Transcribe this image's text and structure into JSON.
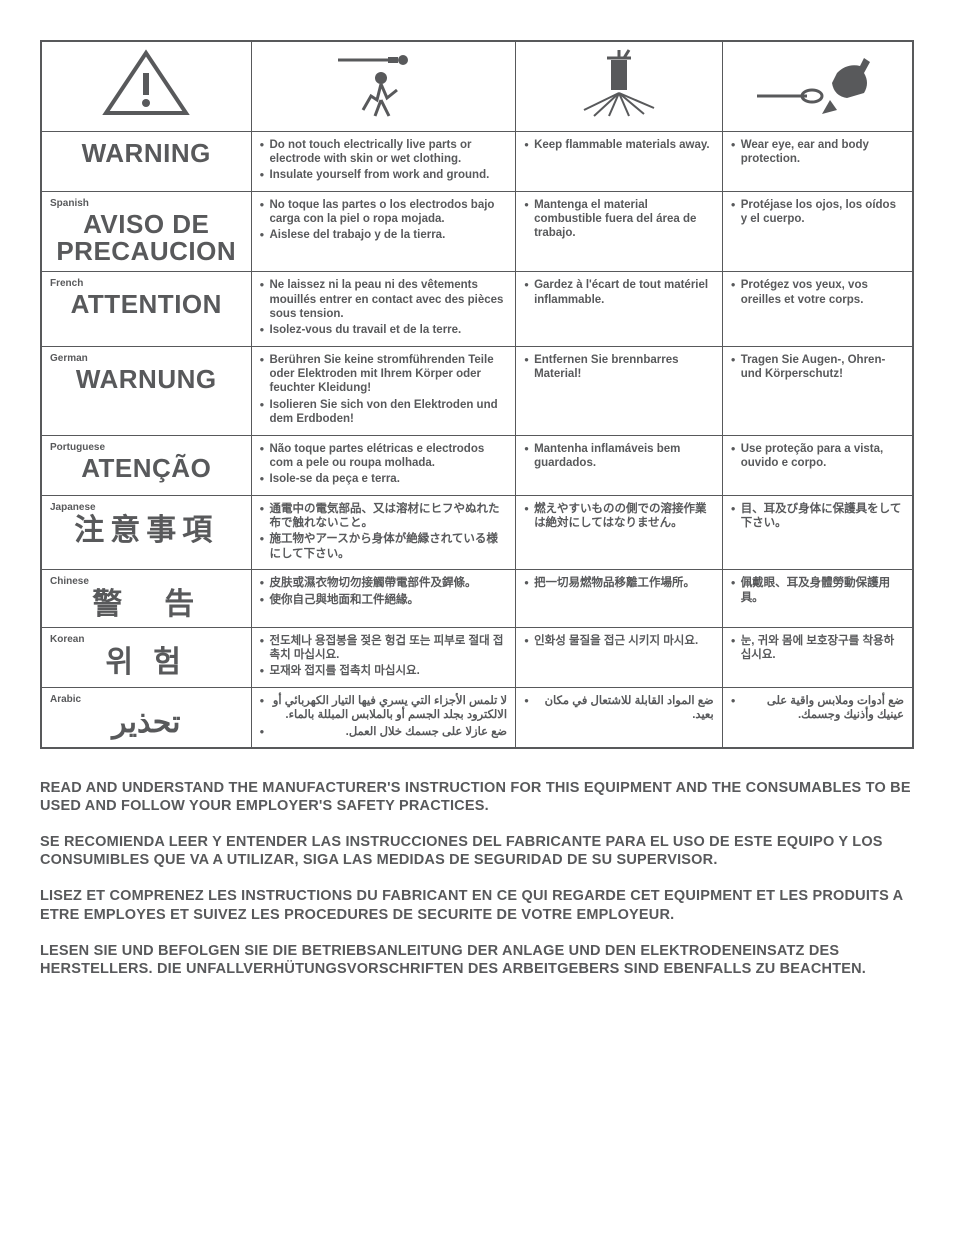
{
  "icons": {
    "c1_alt": "warning-triangle",
    "c2_alt": "electric-shock-person",
    "c3_alt": "fire-sparks",
    "c4_alt": "ppe-goggles-gloves"
  },
  "rows": [
    {
      "lang_label": "",
      "heading": "WARNING",
      "heading_class": "",
      "c1": [
        "Do not touch electrically live parts or electrode with skin or wet clothing.",
        "Insulate yourself from work and ground."
      ],
      "c2": [
        "Keep flammable materials away."
      ],
      "c3": [
        "Wear eye, ear and body protection."
      ],
      "rtl": false
    },
    {
      "lang_label": "Spanish",
      "heading": "AVISO DE PRECAUCION",
      "heading_class": "",
      "c1": [
        "No toque las partes o los electrodos bajo carga con la piel o ropa mojada.",
        "Aislese del trabajo y de la tierra."
      ],
      "c2": [
        "Mantenga el material combustible fuera del área de trabajo."
      ],
      "c3": [
        "Protéjase los ojos, los oídos y el cuerpo."
      ],
      "rtl": false
    },
    {
      "lang_label": "French",
      "heading": "ATTENTION",
      "heading_class": "",
      "c1": [
        "Ne laissez ni la peau ni des vêtements mouillés entrer en contact avec des pièces sous tension.",
        "Isolez-vous du travail et de la terre."
      ],
      "c2": [
        "Gardez à l'écart de tout matériel inflammable."
      ],
      "c3": [
        "Protégez vos yeux, vos oreilles et votre corps."
      ],
      "rtl": false
    },
    {
      "lang_label": "German",
      "heading": "WARNUNG",
      "heading_class": "",
      "c1": [
        "Berühren Sie keine stromführenden Teile oder Elektroden mit Ihrem Körper oder feuchter Kleidung!",
        "Isolieren Sie sich von den Elektroden und dem Erdboden!"
      ],
      "c2": [
        "Entfernen Sie brennbarres Material!"
      ],
      "c3": [
        "Tragen Sie Augen-, Ohren- und Körperschutz!"
      ],
      "rtl": false
    },
    {
      "lang_label": "Portuguese",
      "heading": "ATENÇÃO",
      "heading_class": "",
      "c1": [
        "Não toque partes elétricas e electrodos com a pele ou roupa molhada.",
        "Isole-se da peça e terra."
      ],
      "c2": [
        "Mantenha inflamáveis bem guardados."
      ],
      "c3": [
        "Use proteção para a vista, ouvido e corpo."
      ],
      "rtl": false
    },
    {
      "lang_label": "Japanese",
      "heading": "注意事項",
      "heading_class": "cjk",
      "c1": [
        "通電中の電気部品、又は溶材にヒフやぬれた布で触れないこと。",
        "施工物やアースから身体が絶縁されている様にして下さい。"
      ],
      "c2": [
        "燃えやすいものの側での溶接作業は絶対にしてはなりません。"
      ],
      "c3": [
        "目、耳及び身体に保護具をして下さい。"
      ],
      "rtl": false
    },
    {
      "lang_label": "Chinese",
      "heading": "警　告",
      "heading_class": "cjk",
      "c1": [
        "皮肤或濕衣物切勿接觸帶電部件及銲條。",
        "使你自己與地面和工件絕緣。"
      ],
      "c2": [
        "把一切易燃物品移離工作場所。"
      ],
      "c3": [
        "佩戴眼、耳及身體勞動保護用具。"
      ],
      "rtl": false
    },
    {
      "lang_label": "Korean",
      "heading": "위 험",
      "heading_class": "cjk",
      "c1": [
        "전도체나 용접봉을 젖은 헝겁 또는 피부로 절대 접촉치 마십시요.",
        "모재와 접지를 접촉치 마십시요."
      ],
      "c2": [
        "인화성 물질을 접근 시키지 마시요."
      ],
      "c3": [
        "눈, 귀와 몸에 보호장구를 착용하십시요."
      ],
      "rtl": false
    },
    {
      "lang_label": "Arabic",
      "heading": "تحذير",
      "heading_class": "cjk",
      "c1": [
        "لا تلمس الأجزاء التي يسري فيها التيار الكهربائي أو الالكترود بجلد الجسم أو بالملابس المبللة بالماء.",
        "ضع عازلا على جسمك خلال العمل."
      ],
      "c2": [
        "ضع المواد القابلة للاشتعال في مكان بعيد."
      ],
      "c3": [
        "ضع أدوات وملابس واقية على عينيك وأذنيك وجسمك."
      ],
      "rtl": true
    }
  ],
  "footer": [
    "READ AND UNDERSTAND THE MANUFACTURER'S INSTRUCTION FOR THIS EQUIPMENT AND THE CONSUMABLES TO BE USED AND FOLLOW YOUR EMPLOYER'S SAFETY PRACTICES.",
    "SE RECOMIENDA LEER Y ENTENDER LAS INSTRUCCIONES DEL FABRICANTE PARA EL USO DE ESTE EQUIPO Y LOS CONSUMIBLES QUE VA A UTILIZAR, SIGA LAS MEDIDAS DE SEGURIDAD DE SU SUPERVISOR.",
    "LISEZ ET COMPRENEZ LES INSTRUCTIONS DU FABRICANT EN CE QUI REGARDE CET EQUIPMENT ET LES PRODUITS A ETRE EMPLOYES ET SUIVEZ LES PROCEDURES DE SECURITE DE VOTRE EMPLOYEUR.",
    "LESEN SIE UND BEFOLGEN SIE DIE BETRIEBSANLEITUNG DER ANLAGE UND DEN ELEKTRODENEINSATZ DES HERSTELLERS. DIE UNFALLVERHÜTUNGSVORSCHRIFTEN DES ARBEITGEBERS SIND EBENFALLS ZU BEACHTEN."
  ],
  "colors": {
    "text": "#58595b",
    "border": "#58595b",
    "background": "#ffffff"
  }
}
